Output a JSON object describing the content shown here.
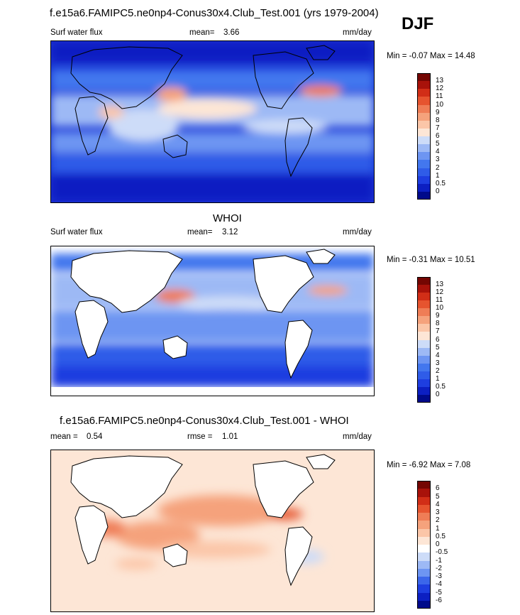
{
  "header": {
    "title": "f.e15a6.FAMIPC5.ne0np4-Conus30x4.Club_Test.001 (yrs 1979-2004)",
    "season": "DJF"
  },
  "panel1": {
    "field": "Surf water flux",
    "mean_label": "mean=",
    "mean_value": "3.66",
    "units": "mm/day",
    "minmax": "Min = -0.07 Max = 14.48"
  },
  "panel2": {
    "title": "WHOI",
    "field": "Surf water flux",
    "mean_label": "mean=",
    "mean_value": "3.12",
    "units": "mm/day",
    "minmax": "Min = -0.31 Max = 10.51"
  },
  "panel3": {
    "title": "f.e15a6.FAMIPC5.ne0np4-Conus30x4.Club_Test.001 - WHOI",
    "mean_label": "mean =",
    "mean_value": "0.54",
    "rmse_label": "rmse =",
    "rmse_value": "1.01",
    "units": "mm/day",
    "minmax": "Min = -6.92 Max = 7.08"
  },
  "chart_data": [
    {
      "type": "heatmap",
      "title": "f.e15a6.FAMIPC5.ne0np4-Conus30x4.Club_Test.001 (yrs 1979-2004)",
      "field": "Surf water flux",
      "units": "mm/day",
      "mean": 3.66,
      "min": -0.07,
      "max": 14.48,
      "levels": [
        "0",
        "0.5",
        "1",
        "2",
        "3",
        "4",
        "5",
        "6",
        "7",
        "8",
        "9",
        "10",
        "11",
        "12",
        "13"
      ],
      "colors": [
        "#000a8a",
        "#0c1fc2",
        "#1e3ee0",
        "#2f5ce8",
        "#4377ee",
        "#6d95f2",
        "#9db9f5",
        "#cddcf8",
        "#fde6d6",
        "#fbc6a8",
        "#f5a27c",
        "#ef7d56",
        "#e6542f",
        "#d12e17",
        "#a8120a",
        "#740602"
      ]
    },
    {
      "type": "heatmap",
      "title": "WHOI",
      "field": "Surf water flux",
      "units": "mm/day",
      "mean": 3.12,
      "min": -0.31,
      "max": 10.51,
      "levels": [
        "0",
        "0.5",
        "1",
        "2",
        "3",
        "4",
        "5",
        "6",
        "7",
        "8",
        "9",
        "10",
        "11",
        "12",
        "13"
      ],
      "colors": [
        "#000a8a",
        "#0c1fc2",
        "#1e3ee0",
        "#2f5ce8",
        "#4377ee",
        "#6d95f2",
        "#9db9f5",
        "#cddcf8",
        "#fde6d6",
        "#fbc6a8",
        "#f5a27c",
        "#ef7d56",
        "#e6542f",
        "#d12e17",
        "#a8120a",
        "#740602"
      ]
    },
    {
      "type": "heatmap",
      "title": "f.e15a6.FAMIPC5.ne0np4-Conus30x4.Club_Test.001 - WHOI",
      "units": "mm/day",
      "mean": 0.54,
      "rmse": 1.01,
      "min": -6.92,
      "max": 7.08,
      "levels": [
        "-6",
        "-5",
        "-4",
        "-3",
        "-2",
        "-1",
        "-0.5",
        "0",
        "0.5",
        "1",
        "2",
        "3",
        "4",
        "5",
        "6"
      ],
      "colors": [
        "#000a8a",
        "#0c1fc2",
        "#1e3ee0",
        "#3b66ea",
        "#6d95f2",
        "#9db9f5",
        "#cddcf8",
        "#ffffff",
        "#fde6d6",
        "#fbc6a8",
        "#f5a27c",
        "#ef7d56",
        "#e6542f",
        "#d12e17",
        "#a8120a",
        "#740602"
      ]
    }
  ]
}
